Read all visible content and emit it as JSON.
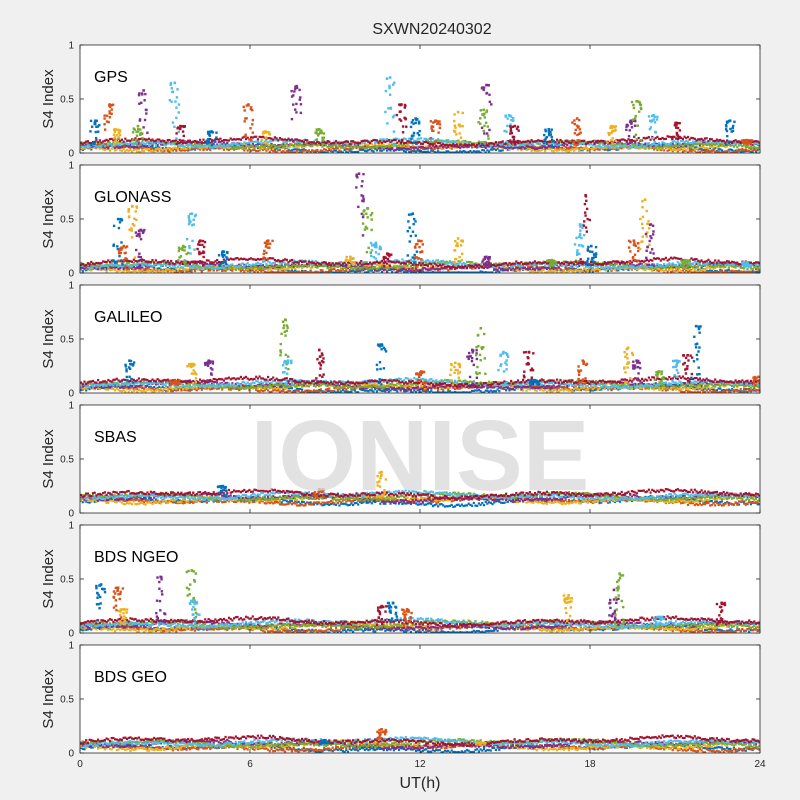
{
  "title": "SXWN20240302",
  "watermark": "IONISE",
  "chart_data": {
    "type": "scatter",
    "title": "SXWN20240302",
    "xlabel": "UT(h)",
    "xlim": [
      0,
      24
    ],
    "x_ticks": [
      "0",
      "6",
      "12",
      "18",
      "24"
    ],
    "ylabel": "S4 Index",
    "ylim": [
      0,
      1
    ],
    "y_ticks": [
      "0",
      "0.5",
      "1"
    ],
    "series_colors": [
      "#0072BD",
      "#D95319",
      "#EDB120",
      "#7E2F8E",
      "#77AC30",
      "#4DBEEE",
      "#A2142F"
    ],
    "panels": [
      {
        "name": "GPS",
        "baseline": 0.07,
        "events": [
          [
            0.5,
            0.3
          ],
          [
            1.0,
            0.45
          ],
          [
            1.2,
            0.22
          ],
          [
            2.2,
            0.58
          ],
          [
            2.0,
            0.25
          ],
          [
            3.3,
            0.65
          ],
          [
            3.5,
            0.25
          ],
          [
            4.6,
            0.2
          ],
          [
            5.9,
            0.45
          ],
          [
            6.5,
            0.2
          ],
          [
            7.6,
            0.62
          ],
          [
            8.4,
            0.22
          ],
          [
            10.9,
            0.7
          ],
          [
            11.3,
            0.45
          ],
          [
            11.8,
            0.32
          ],
          [
            12.5,
            0.3
          ],
          [
            13.3,
            0.38
          ],
          [
            14.3,
            0.63
          ],
          [
            14.2,
            0.4
          ],
          [
            15.1,
            0.35
          ],
          [
            15.3,
            0.25
          ],
          [
            16.5,
            0.22
          ],
          [
            17.5,
            0.32
          ],
          [
            18.7,
            0.25
          ],
          [
            19.4,
            0.3
          ],
          [
            19.6,
            0.48
          ],
          [
            20.2,
            0.35
          ],
          [
            21.0,
            0.28
          ],
          [
            22.9,
            0.3
          ],
          [
            23.5,
            0.12
          ]
        ]
      },
      {
        "name": "GLONASS",
        "baseline": 0.06,
        "events": [
          [
            1.3,
            0.5
          ],
          [
            1.5,
            0.25
          ],
          [
            1.8,
            0.62
          ],
          [
            2.1,
            0.4
          ],
          [
            3.6,
            0.25
          ],
          [
            3.9,
            0.55
          ],
          [
            4.2,
            0.3
          ],
          [
            5.0,
            0.2
          ],
          [
            6.6,
            0.3
          ],
          [
            9.5,
            0.15
          ],
          [
            9.8,
            0.92
          ],
          [
            10.1,
            0.6
          ],
          [
            10.4,
            0.28
          ],
          [
            10.8,
            0.18
          ],
          [
            11.7,
            0.55
          ],
          [
            11.9,
            0.3
          ],
          [
            13.3,
            0.32
          ],
          [
            14.3,
            0.15
          ],
          [
            16.6,
            0.12
          ],
          [
            17.6,
            0.45
          ],
          [
            17.8,
            0.72
          ],
          [
            18.0,
            0.25
          ],
          [
            19.5,
            0.3
          ],
          [
            19.9,
            0.68
          ],
          [
            20.1,
            0.45
          ],
          [
            21.3,
            0.12
          ],
          [
            23.5,
            0.1
          ]
        ]
      },
      {
        "name": "GALILEO",
        "baseline": 0.07,
        "events": [
          [
            1.7,
            0.3
          ],
          [
            3.3,
            0.12
          ],
          [
            3.9,
            0.27
          ],
          [
            4.5,
            0.3
          ],
          [
            7.2,
            0.68
          ],
          [
            7.3,
            0.3
          ],
          [
            8.4,
            0.4
          ],
          [
            10.6,
            0.45
          ],
          [
            12.0,
            0.2
          ],
          [
            13.2,
            0.28
          ],
          [
            13.8,
            0.4
          ],
          [
            14.1,
            0.6
          ],
          [
            14.9,
            0.38
          ],
          [
            15.8,
            0.38
          ],
          [
            16.0,
            0.12
          ],
          [
            17.7,
            0.3
          ],
          [
            19.3,
            0.42
          ],
          [
            19.6,
            0.3
          ],
          [
            20.4,
            0.2
          ],
          [
            21.0,
            0.3
          ],
          [
            21.4,
            0.35
          ],
          [
            21.7,
            0.62
          ],
          [
            23.9,
            0.15
          ]
        ]
      },
      {
        "name": "SBAS",
        "baseline": 0.14,
        "events": [
          [
            5.0,
            0.25
          ],
          [
            8.4,
            0.22
          ],
          [
            10.6,
            0.38
          ]
        ]
      },
      {
        "name": "BDS NGEO",
        "baseline": 0.07,
        "events": [
          [
            0.7,
            0.45
          ],
          [
            1.3,
            0.42
          ],
          [
            1.5,
            0.22
          ],
          [
            2.8,
            0.52
          ],
          [
            3.9,
            0.58
          ],
          [
            4.0,
            0.3
          ],
          [
            10.6,
            0.25
          ],
          [
            11.0,
            0.28
          ],
          [
            11.5,
            0.22
          ],
          [
            17.2,
            0.35
          ],
          [
            18.8,
            0.4
          ],
          [
            19.0,
            0.55
          ],
          [
            20.4,
            0.15
          ],
          [
            22.6,
            0.28
          ]
        ]
      },
      {
        "name": "BDS GEO",
        "baseline": 0.08,
        "events": [
          [
            8.6,
            0.12
          ],
          [
            10.6,
            0.22
          ],
          [
            14.1,
            0.1
          ]
        ]
      }
    ]
  }
}
